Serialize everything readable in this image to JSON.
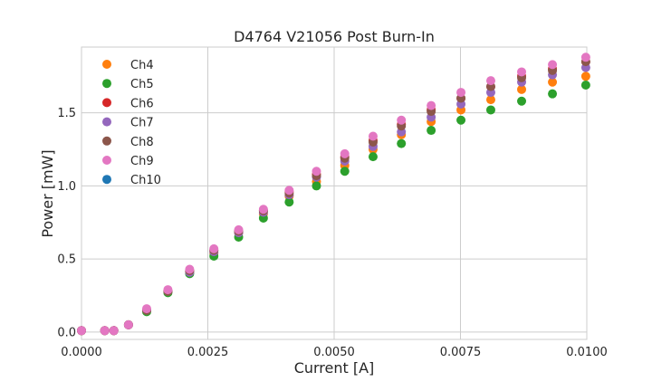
{
  "chart_data": {
    "type": "scatter",
    "title": "D4764 V21056 Post Burn-In",
    "xlabel": "Current [A]",
    "ylabel": "Power [mW]",
    "xlim": [
      0.0,
      0.01
    ],
    "ylim": [
      -0.05,
      1.95
    ],
    "xticks": [
      "0.0000",
      "0.0025",
      "0.0050",
      "0.0075",
      "0.0100"
    ],
    "xtick_values": [
      0.0,
      0.0025,
      0.005,
      0.0075,
      0.01
    ],
    "yticks": [
      "0.0",
      "0.5",
      "1.0",
      "1.5"
    ],
    "ytick_values": [
      0.0,
      0.5,
      1.0,
      1.5
    ],
    "grid": true,
    "legend_position": "upper-left",
    "x": [
      0.0,
      0.00046,
      0.00064,
      0.00093,
      0.00129,
      0.00171,
      0.00214,
      0.00262,
      0.00311,
      0.0036,
      0.00411,
      0.00465,
      0.00521,
      0.00577,
      0.00633,
      0.00692,
      0.00751,
      0.0081,
      0.00871,
      0.00932,
      0.00998
    ],
    "series": [
      {
        "name": "Ch4",
        "color": "#ff7f0e",
        "values": [
          0.01,
          0.01,
          0.01,
          0.05,
          0.15,
          0.28,
          0.41,
          0.54,
          0.68,
          0.81,
          0.93,
          1.03,
          1.14,
          1.25,
          1.35,
          1.44,
          1.52,
          1.59,
          1.66,
          1.71,
          1.75
        ]
      },
      {
        "name": "Ch5",
        "color": "#2ca02c",
        "values": [
          0.01,
          0.01,
          0.01,
          0.05,
          0.14,
          0.27,
          0.4,
          0.52,
          0.65,
          0.78,
          0.89,
          1.0,
          1.1,
          1.2,
          1.29,
          1.38,
          1.45,
          1.52,
          1.58,
          1.63,
          1.69
        ]
      },
      {
        "name": "Ch6",
        "color": "#d62728",
        "values": [
          0.01,
          0.01,
          0.01,
          0.05,
          0.15,
          0.28,
          0.42,
          0.56,
          0.69,
          0.83,
          0.96,
          1.08,
          1.2,
          1.31,
          1.42,
          1.52,
          1.6,
          1.68,
          1.75,
          1.8,
          1.85
        ]
      },
      {
        "name": "Ch7",
        "color": "#9467bd",
        "values": [
          0.01,
          0.01,
          0.01,
          0.05,
          0.15,
          0.28,
          0.41,
          0.55,
          0.68,
          0.82,
          0.94,
          1.06,
          1.17,
          1.27,
          1.37,
          1.47,
          1.56,
          1.64,
          1.71,
          1.76,
          1.81
        ]
      },
      {
        "name": "Ch8",
        "color": "#8c564b",
        "values": [
          0.01,
          0.01,
          0.01,
          0.05,
          0.15,
          0.28,
          0.42,
          0.56,
          0.69,
          0.83,
          0.95,
          1.07,
          1.19,
          1.3,
          1.41,
          1.51,
          1.6,
          1.68,
          1.74,
          1.79,
          1.85
        ]
      },
      {
        "name": "Ch9",
        "color": "#e377c2",
        "values": [
          0.01,
          0.01,
          0.01,
          0.05,
          0.16,
          0.29,
          0.43,
          0.57,
          0.7,
          0.84,
          0.97,
          1.1,
          1.22,
          1.34,
          1.45,
          1.55,
          1.64,
          1.72,
          1.78,
          1.83,
          1.88
        ]
      },
      {
        "name": "Ch10",
        "color": "#1f77b4",
        "values": []
      }
    ]
  }
}
